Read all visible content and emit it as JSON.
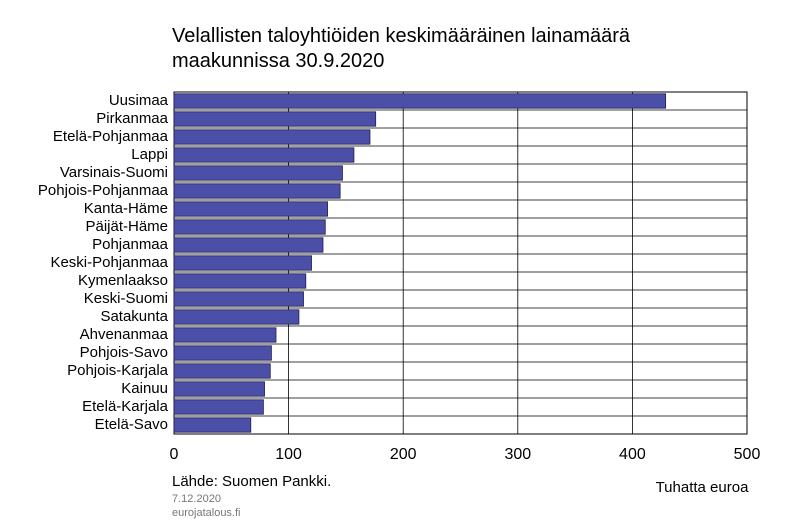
{
  "chart_data": {
    "type": "bar",
    "orientation": "horizontal",
    "title": "Velallisten taloyhtiöiden keskimääräinen lainamäärä maakunnissa 30.9.2020",
    "categories": [
      "Uusimaa",
      "Pirkanmaa",
      "Etelä-Pohjanmaa",
      "Lappi",
      "Varsinais-Suomi",
      "Pohjois-Pohjanmaa",
      "Kanta-Häme",
      "Päijät-Häme",
      "Pohjanmaa",
      "Keski-Pohjanmaa",
      "Kymenlaakso",
      "Keski-Suomi",
      "Satakunta",
      "Ahvenanmaa",
      "Pohjois-Savo",
      "Pohjois-Karjala",
      "Kainuu",
      "Etelä-Karjala",
      "Etelä-Savo"
    ],
    "values": [
      429,
      176,
      171,
      157,
      147,
      145,
      134,
      132,
      130,
      120,
      115,
      113,
      109,
      89,
      85,
      84,
      79,
      78,
      67
    ],
    "color": "#4b4fa8",
    "xlim": [
      0,
      500
    ],
    "xticks": [
      0,
      100,
      200,
      300,
      400,
      500
    ],
    "grid": true,
    "xlabel": "Tuhatta euroa",
    "source": "Lähde: Suomen Pankki.",
    "date": "7.12.2020",
    "site": "eurojatalous.fi"
  }
}
